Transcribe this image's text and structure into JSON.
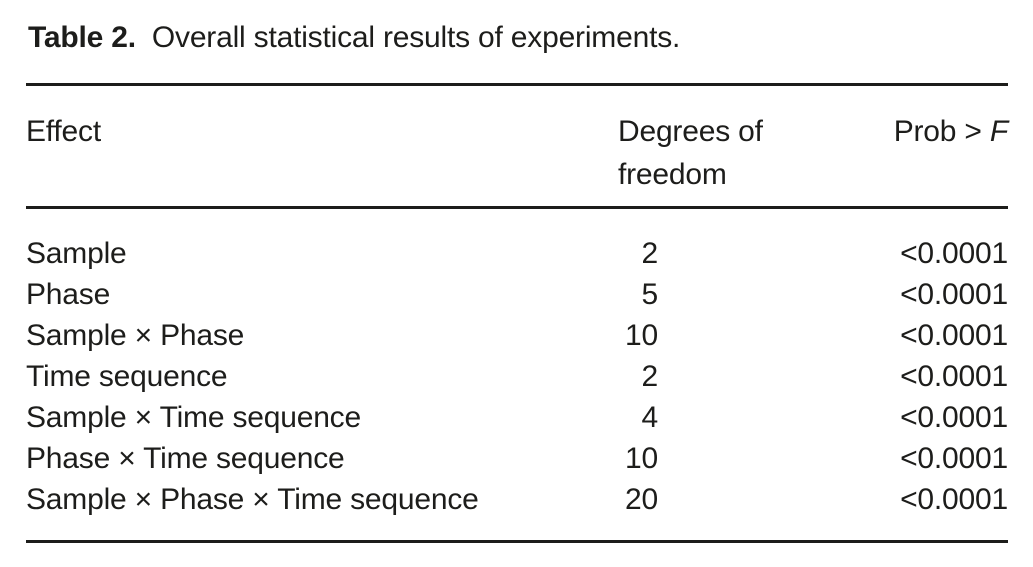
{
  "caption": {
    "label": "Table 2.",
    "text": "Overall statistical results of experiments."
  },
  "table": {
    "columns": {
      "effect": "Effect",
      "df_line1": "Degrees of",
      "df_line2": "freedom",
      "prob_prefix": "Prob > ",
      "prob_symbol": "F"
    },
    "rows": [
      {
        "effect": "Sample",
        "df": "2",
        "prob": "<0.0001"
      },
      {
        "effect": "Phase",
        "df": "5",
        "prob": "<0.0001"
      },
      {
        "effect": "Sample × Phase",
        "df": "10",
        "prob": "<0.0001"
      },
      {
        "effect": "Time sequence",
        "df": "2",
        "prob": "<0.0001"
      },
      {
        "effect": "Sample × Time sequence",
        "df": "4",
        "prob": "<0.0001"
      },
      {
        "effect": "Phase × Time sequence",
        "df": "10",
        "prob": "<0.0001"
      },
      {
        "effect": "Sample × Phase × Time sequence",
        "df": "20",
        "prob": "<0.0001"
      }
    ]
  },
  "colors": {
    "text": "#1d1d1b",
    "rule": "#1d1d1b",
    "background": "#ffffff"
  }
}
